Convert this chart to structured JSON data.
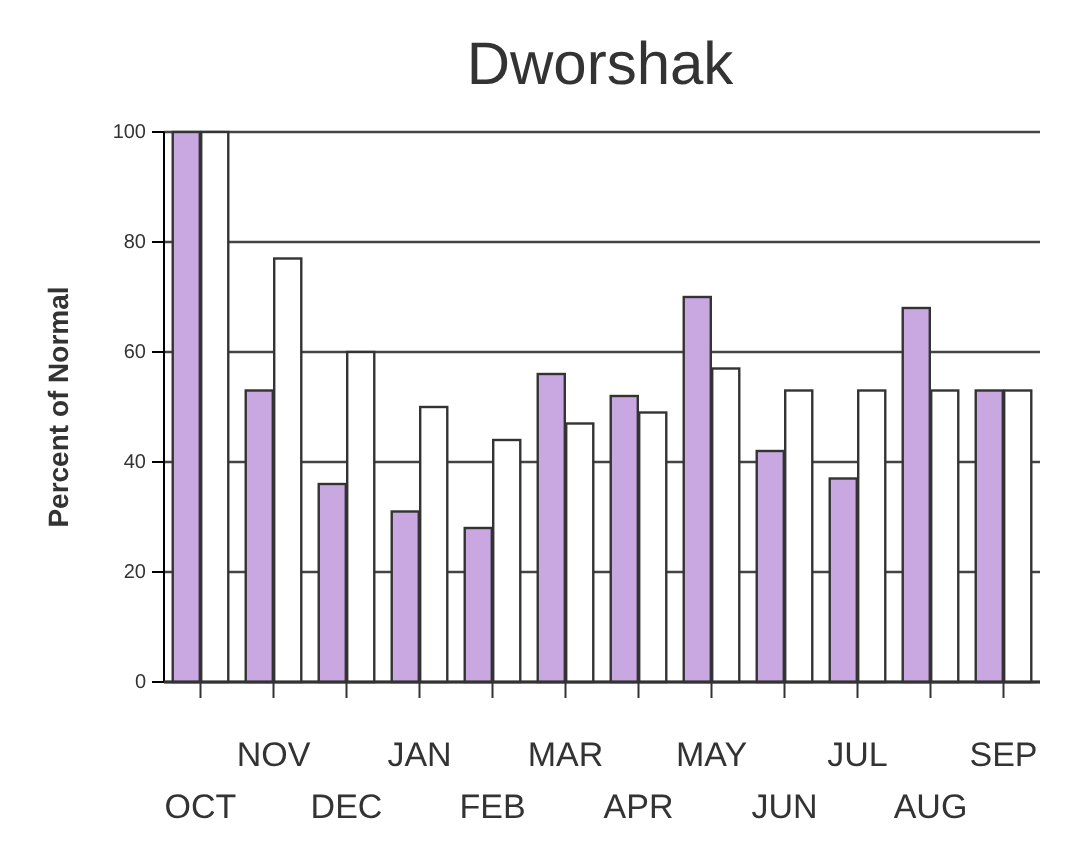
{
  "chart_data": {
    "type": "bar",
    "title": "Dworshak",
    "ylabel": "Percent of Normal",
    "categories": [
      "OCT",
      "NOV",
      "DEC",
      "JAN",
      "FEB",
      "MAR",
      "APR",
      "MAY",
      "JUN",
      "JUL",
      "AUG",
      "SEP"
    ],
    "series": [
      {
        "color": "#c9a8e2",
        "values": [
          100,
          53,
          36,
          31,
          28,
          56,
          52,
          70,
          42,
          37,
          68,
          53
        ]
      },
      {
        "color": "#ffffff",
        "values": [
          100,
          77,
          60,
          50,
          44,
          47,
          49,
          57,
          53,
          53,
          53,
          53
        ]
      }
    ],
    "ylim": [
      0,
      100
    ],
    "yticks": [
      0,
      20,
      40,
      60,
      80,
      100
    ],
    "grid": "y"
  }
}
